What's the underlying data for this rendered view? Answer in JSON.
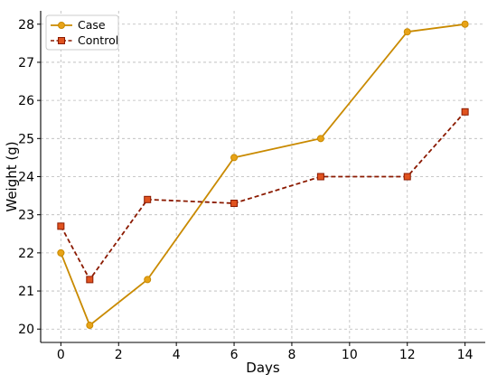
{
  "chart_data": {
    "type": "line",
    "title": "",
    "xlabel": "Days",
    "ylabel": "Weight (g)",
    "xlim": [
      -0.7,
      14.7
    ],
    "ylim": [
      19.65,
      28.35
    ],
    "x_ticks": [
      0,
      2,
      4,
      6,
      8,
      10,
      12,
      14
    ],
    "y_ticks": [
      20,
      21,
      22,
      23,
      24,
      25,
      26,
      27,
      28
    ],
    "grid": true,
    "legend_position": "top-left",
    "series": [
      {
        "name": "Case",
        "color": "#C98A00",
        "marker": "circle",
        "line_style": "solid",
        "x": [
          0,
          1,
          3,
          6,
          9,
          12,
          14
        ],
        "values": [
          22.0,
          20.1,
          21.3,
          24.5,
          25.0,
          27.8,
          28.0
        ]
      },
      {
        "name": "Control",
        "color": "#8B1A00",
        "marker_fill": "#E0531F",
        "marker": "square",
        "line_style": "dashed",
        "x": [
          0,
          1,
          3,
          6,
          9,
          12,
          14
        ],
        "values": [
          22.7,
          21.3,
          23.4,
          23.3,
          24.0,
          24.0,
          25.7
        ]
      }
    ]
  }
}
